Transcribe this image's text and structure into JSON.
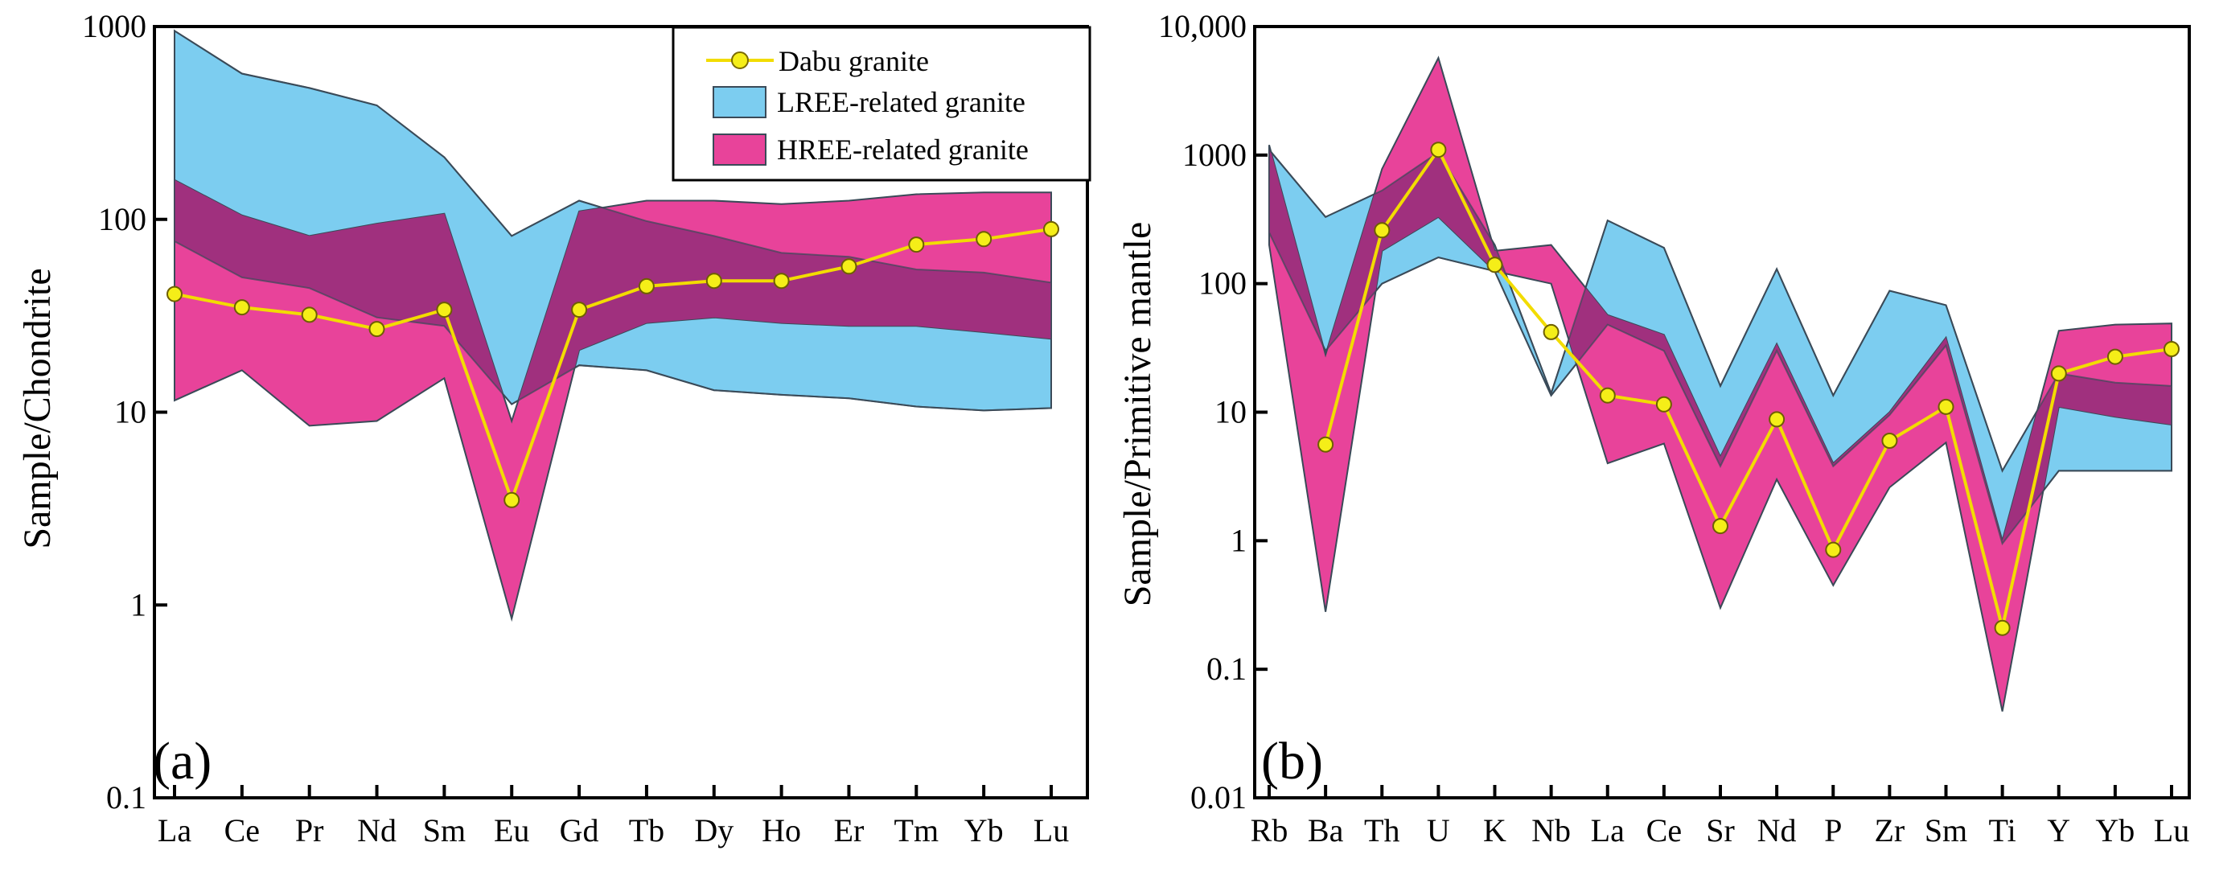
{
  "colors": {
    "lree_fill": "#7ccdf0",
    "hree_fill": "#e8439a",
    "overlap_fill": "#a0307e",
    "dabu_line": "#f2dc00",
    "dabu_marker": "#f5ee18",
    "band_stroke": "#3a4a58"
  },
  "legend": {
    "dabu": "Dabu granite",
    "lree": "LREE-related granite",
    "hree": "HREE-related granite"
  },
  "chart_data": [
    {
      "type": "line",
      "panel": "(a)",
      "ylabel": "Sample/Chondrite",
      "yscale": "log",
      "ylim": [
        0.1,
        1000
      ],
      "yticks": [
        "0.1",
        "1",
        "10",
        "100",
        "1000"
      ],
      "categories": [
        "La",
        "Ce",
        "Pr",
        "Nd",
        "Sm",
        "Eu",
        "Gd",
        "Tb",
        "Dy",
        "Ho",
        "Er",
        "Tm",
        "Yb",
        "Lu"
      ],
      "lree_band": {
        "upper": [
          950,
          570,
          480,
          390,
          210,
          82,
          125,
          98,
          82,
          67,
          64,
          55,
          53,
          47
        ],
        "lower": [
          77,
          50,
          44,
          31,
          28,
          11,
          17.5,
          16.5,
          13,
          12.3,
          11.8,
          10.7,
          10.2,
          10.5
        ]
      },
      "hree_band": {
        "upper": [
          160,
          105,
          82,
          95,
          107,
          9,
          110,
          125,
          125,
          120,
          125,
          135,
          138,
          138
        ],
        "lower": [
          11.5,
          16.5,
          8.5,
          9,
          15,
          0.85,
          21,
          29,
          31,
          29,
          28,
          28,
          26,
          24
        ]
      },
      "series": [
        {
          "name": "Dabu granite",
          "values": [
            41,
            35,
            32,
            27,
            34,
            3.5,
            34,
            45,
            48,
            48,
            57,
            74,
            79,
            89
          ]
        }
      ]
    },
    {
      "type": "line",
      "panel": "(b)",
      "ylabel": "Sample/Primitive mantle",
      "yscale": "log",
      "ylim": [
        0.01,
        10000
      ],
      "yticks": [
        "0.01",
        "0.1",
        "1",
        "10",
        "100",
        "1000",
        "10,000"
      ],
      "categories": [
        "Rb",
        "Ba",
        "Th",
        "U",
        "K",
        "Nb",
        "La",
        "Ce",
        "Sr",
        "Nd",
        "P",
        "Zr",
        "Sm",
        "Ti",
        "Y",
        "Yb",
        "Lu"
      ],
      "lree_band": {
        "upper": [
          1100,
          330,
          530,
          1050,
          200,
          14,
          310,
          190,
          16,
          130,
          13.5,
          88,
          68,
          3.5,
          20,
          17,
          16
        ],
        "lower": [
          250,
          30,
          100,
          160,
          125,
          13.5,
          48,
          30,
          3.8,
          30,
          3.8,
          9.5,
          33,
          0.95,
          3.5,
          3.5,
          3.5
        ]
      },
      "hree_band": {
        "upper": [
          1200,
          28,
          780,
          5700,
          180,
          200,
          57,
          40,
          4.5,
          34,
          4,
          10,
          38,
          1,
          43,
          48,
          49
        ],
        "lower": [
          200,
          0.28,
          180,
          330,
          125,
          100,
          4,
          5.7,
          0.3,
          3,
          0.45,
          2.6,
          5.8,
          0.047,
          11,
          9.2,
          8
        ]
      },
      "series": [
        {
          "name": "Dabu granite",
          "values": [
            null,
            5.6,
            260,
            1100,
            140,
            42,
            13.5,
            11.5,
            1.3,
            8.8,
            0.85,
            6,
            11,
            0.21,
            20,
            27,
            31
          ]
        }
      ]
    }
  ]
}
